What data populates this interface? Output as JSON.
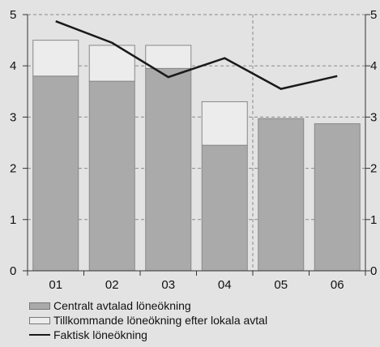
{
  "chart_data": {
    "type": "bar",
    "categories": [
      "01",
      "02",
      "03",
      "04",
      "05",
      "06"
    ],
    "ylim": [
      0,
      5
    ],
    "y_ticks": [
      "0",
      "1",
      "2",
      "3",
      "4",
      "5"
    ],
    "grid": "dashed horizontal lines at each tick; vertical dashed separator between 04 and 05",
    "legend_position": "bottom",
    "series": [
      {
        "name": "Centralt avtalad löneökning",
        "kind": "bar-stacked",
        "color": "#aaaaaa",
        "values": [
          3.8,
          3.7,
          3.95,
          2.45,
          2.97,
          2.87
        ]
      },
      {
        "name": "Tillkommande löneökning efter lokala avtal",
        "kind": "bar-stacked",
        "color": "#ececec",
        "values": [
          0.7,
          0.7,
          0.45,
          0.85,
          0,
          0
        ]
      },
      {
        "name": "Faktisk löneökning",
        "kind": "line",
        "color": "#1a1a1a",
        "values": [
          4.87,
          4.45,
          3.78,
          4.15,
          3.55,
          3.8
        ]
      }
    ]
  }
}
